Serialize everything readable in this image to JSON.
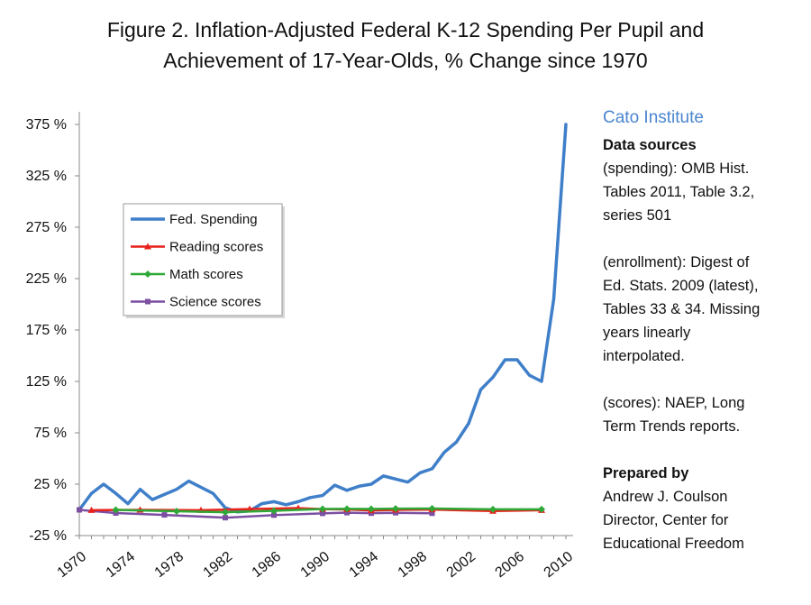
{
  "title_line1": "Figure 2.  Inflation-Adjusted Federal K-12 Spending Per Pupil and",
  "title_line2": "Achievement of 17-Year-Olds, % Change since 1970",
  "sidebar": {
    "org": "Cato Institute",
    "sources_header": "Data sources",
    "spending_line1": "(spending): OMB Hist.",
    "spending_line2": "Tables 2011, Table 3.2,",
    "spending_line3": "series 501",
    "enroll_line1": "(enrollment): Digest of",
    "enroll_line2": "Ed. Stats. 2009 (latest),",
    "enroll_line3": "Tables 33 & 34. Missing",
    "enroll_line4": "years linearly",
    "enroll_line5": "interpolated.",
    "scores_line1": "(scores): NAEP, Long",
    "scores_line2": "Term Trends reports.",
    "prepared_header": "Prepared by",
    "author": "Andrew J. Coulson",
    "author_title1": "Director, Center for",
    "author_title2": "Educational Freedom"
  },
  "chart_data": {
    "type": "line",
    "title": "Figure 2.  Inflation-Adjusted Federal K-12 Spending Per Pupil and Achievement of 17-Year-Olds, % Change since 1970",
    "ylim": [
      -25,
      375
    ],
    "yticks": [
      -25,
      25,
      75,
      125,
      175,
      225,
      275,
      325,
      375
    ],
    "ytick_labels": [
      "-25 %",
      "25 %",
      "75 %",
      "125 %",
      "175 %",
      "225 %",
      "275 %",
      "325 %",
      "375 %"
    ],
    "xlim": [
      1970,
      2010
    ],
    "xticks": [
      1970,
      1974,
      1978,
      1982,
      1986,
      1990,
      1994,
      1998,
      2002,
      2006,
      2010
    ],
    "grid": false,
    "legend_position": "upper-left",
    "series": [
      {
        "name": "Fed. Spending",
        "color": "#3f7fc9",
        "marker": "none",
        "x": [
          1970,
          1971,
          1972,
          1973,
          1974,
          1975,
          1976,
          1977,
          1978,
          1979,
          1980,
          1981,
          1982,
          1983,
          1984,
          1985,
          1986,
          1987,
          1988,
          1989,
          1990,
          1991,
          1992,
          1993,
          1994,
          1995,
          1996,
          1997,
          1998,
          1999,
          2000,
          2001,
          2002,
          2003,
          2004,
          2005,
          2006,
          2007,
          2008,
          2009,
          2010
        ],
        "y": [
          0,
          16,
          25,
          16,
          6,
          20,
          10,
          15,
          20,
          28,
          22,
          16,
          2,
          -2,
          -1,
          6,
          8,
          5,
          8,
          12,
          14,
          24,
          19,
          23,
          25,
          33,
          30,
          27,
          36,
          40,
          56,
          66,
          84,
          117,
          129,
          146,
          146,
          131,
          125,
          205,
          375
        ]
      },
      {
        "name": "Reading scores",
        "color": "#e8211b",
        "marker": "triangle",
        "x": [
          1971,
          1975,
          1980,
          1984,
          1988,
          1990,
          1992,
          1994,
          1996,
          1999,
          2004,
          2008
        ],
        "y": [
          -0.3,
          0.0,
          -0.3,
          0.8,
          1.7,
          0.8,
          0.4,
          -0.6,
          0.0,
          0.3,
          -1.1,
          -0.3
        ]
      },
      {
        "name": "Math scores",
        "color": "#2ea836",
        "marker": "diamond",
        "x": [
          1973,
          1978,
          1982,
          1986,
          1990,
          1992,
          1994,
          1996,
          1999,
          2004,
          2008
        ],
        "y": [
          0.0,
          -1.3,
          -2.3,
          -0.9,
          0.9,
          1.0,
          0.9,
          1.2,
          1.3,
          0.6,
          0.5
        ]
      },
      {
        "name": "Science scores",
        "color": "#7c4fa2",
        "marker": "square",
        "x": [
          1970,
          1973,
          1977,
          1982,
          1986,
          1990,
          1992,
          1994,
          1996,
          1999
        ],
        "y": [
          0.0,
          -3.1,
          -4.9,
          -7.6,
          -5.1,
          -3.4,
          -2.7,
          -3.2,
          -2.8,
          -3.3
        ]
      }
    ]
  }
}
